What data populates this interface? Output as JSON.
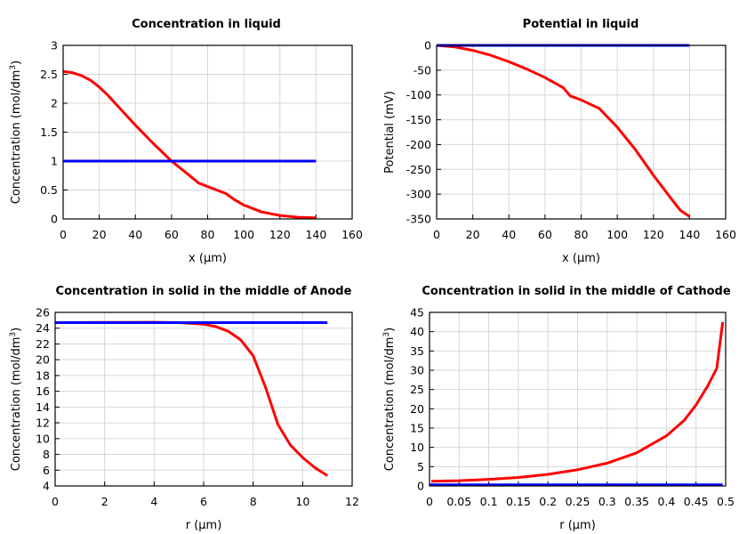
{
  "chart_data": [
    {
      "type": "line",
      "title": "Concentration in liquid",
      "xlabel": "x (µm)",
      "ylabel": "Concentration (mol/dm",
      "ylabel_sup": "3",
      "ylabel_end": ")",
      "xlim": [
        0,
        160
      ],
      "ylim": [
        0,
        3
      ],
      "xticks": [
        0,
        20,
        40,
        60,
        80,
        100,
        120,
        140,
        160
      ],
      "yticks": [
        0,
        0.5,
        1,
        1.5,
        2,
        2.5,
        3
      ],
      "grid": true,
      "series": [
        {
          "color": "#ff0000",
          "x": [
            0,
            5,
            10,
            15,
            20,
            25,
            30,
            40,
            50,
            60,
            70,
            75,
            80,
            85,
            90,
            95,
            100,
            110,
            120,
            130,
            140
          ],
          "y": [
            2.55,
            2.53,
            2.48,
            2.4,
            2.28,
            2.13,
            1.96,
            1.62,
            1.3,
            1.0,
            0.75,
            0.62,
            0.56,
            0.5,
            0.44,
            0.33,
            0.24,
            0.12,
            0.06,
            0.03,
            0.02
          ]
        },
        {
          "color": "#0000ff",
          "x": [
            0,
            140
          ],
          "y": [
            1,
            1
          ]
        }
      ]
    },
    {
      "type": "line",
      "title": "Potential in liquid",
      "xlabel": "x (µm)",
      "ylabel": "Potential (mV)",
      "xlim": [
        0,
        160
      ],
      "ylim": [
        -350,
        0
      ],
      "xticks": [
        0,
        20,
        40,
        60,
        80,
        100,
        120,
        140,
        160
      ],
      "yticks": [
        -350,
        -300,
        -250,
        -200,
        -150,
        -100,
        -50,
        0
      ],
      "grid": true,
      "series": [
        {
          "color": "#ff0000",
          "x": [
            0,
            10,
            20,
            30,
            40,
            50,
            60,
            70,
            74,
            80,
            90,
            100,
            110,
            120,
            130,
            135,
            140
          ],
          "y": [
            0,
            -3,
            -10,
            -20,
            -33,
            -48,
            -65,
            -85,
            -102,
            -110,
            -127,
            -165,
            -210,
            -262,
            -310,
            -333,
            -345
          ]
        },
        {
          "color": "#0000ff",
          "x": [
            0,
            140
          ],
          "y": [
            0,
            0
          ]
        }
      ]
    },
    {
      "type": "line",
      "title": "Concentration in solid in the middle of Anode",
      "xlabel": "r (µm)",
      "ylabel": "Concentration (mol/dm",
      "ylabel_sup": "3",
      "ylabel_end": ")",
      "xlim": [
        0,
        12
      ],
      "ylim": [
        4,
        26
      ],
      "xticks": [
        0,
        2,
        4,
        6,
        8,
        10,
        12
      ],
      "yticks": [
        4,
        6,
        8,
        10,
        12,
        14,
        16,
        18,
        20,
        22,
        24,
        26
      ],
      "grid": true,
      "series": [
        {
          "color": "#ff0000",
          "x": [
            0,
            2,
            4,
            5,
            6,
            6.5,
            7,
            7.5,
            8,
            8.5,
            9,
            9.5,
            10,
            10.5,
            11
          ],
          "y": [
            24.7,
            24.72,
            24.75,
            24.7,
            24.5,
            24.2,
            23.6,
            22.5,
            20.5,
            16.5,
            11.8,
            9.2,
            7.6,
            6.3,
            5.3
          ]
        },
        {
          "color": "#0000ff",
          "x": [
            0,
            11
          ],
          "y": [
            24.7,
            24.7
          ]
        }
      ]
    },
    {
      "type": "line",
      "title": "Concentration in solid in the middle of Cathode",
      "xlabel": "r (µm)",
      "ylabel": "Concentration (mol/dm",
      "ylabel_sup": "3",
      "ylabel_end": ")",
      "xlim": [
        0,
        0.5
      ],
      "ylim": [
        0,
        45
      ],
      "xticks": [
        0,
        0.05,
        0.1,
        0.15,
        0.2,
        0.25,
        0.3,
        0.35,
        0.4,
        0.45,
        0.5
      ],
      "yticks": [
        0,
        5,
        10,
        15,
        20,
        25,
        30,
        35,
        40,
        45
      ],
      "grid": true,
      "series": [
        {
          "color": "#ff0000",
          "x": [
            0.003,
            0.05,
            0.1,
            0.15,
            0.2,
            0.25,
            0.3,
            0.35,
            0.4,
            0.43,
            0.45,
            0.47,
            0.485,
            0.495
          ],
          "y": [
            1.2,
            1.35,
            1.7,
            2.2,
            3.0,
            4.2,
            5.9,
            8.6,
            13,
            17,
            21,
            26,
            30.5,
            42.5
          ]
        },
        {
          "color": "#0000ff",
          "x": [
            0,
            0.495
          ],
          "y": [
            0.3,
            0.3
          ]
        }
      ]
    }
  ]
}
